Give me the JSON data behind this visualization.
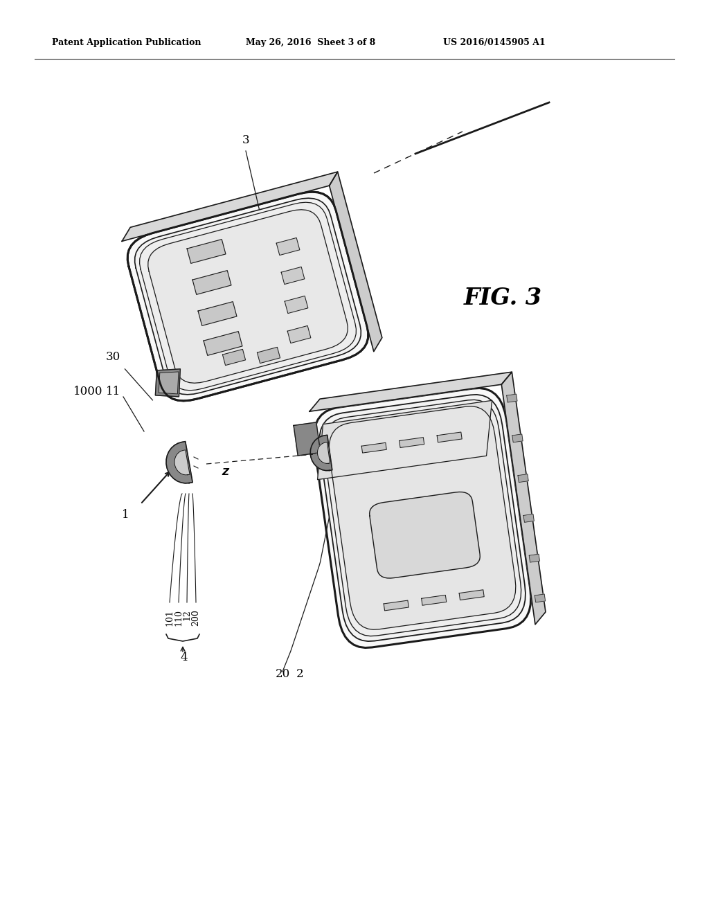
{
  "background_color": "#ffffff",
  "header_left": "Patent Application Publication",
  "header_center": "May 26, 2016  Sheet 3 of 8",
  "header_right": "US 2016/0145905 A1",
  "figure_label": "FIG. 3",
  "color_line": "#1a1a1a",
  "color_fill_main": "#f5f5f5",
  "color_fill_dark": "#e0e0e0",
  "color_fill_mid": "#ececec",
  "color_fill_slot": "#d0d0d0"
}
